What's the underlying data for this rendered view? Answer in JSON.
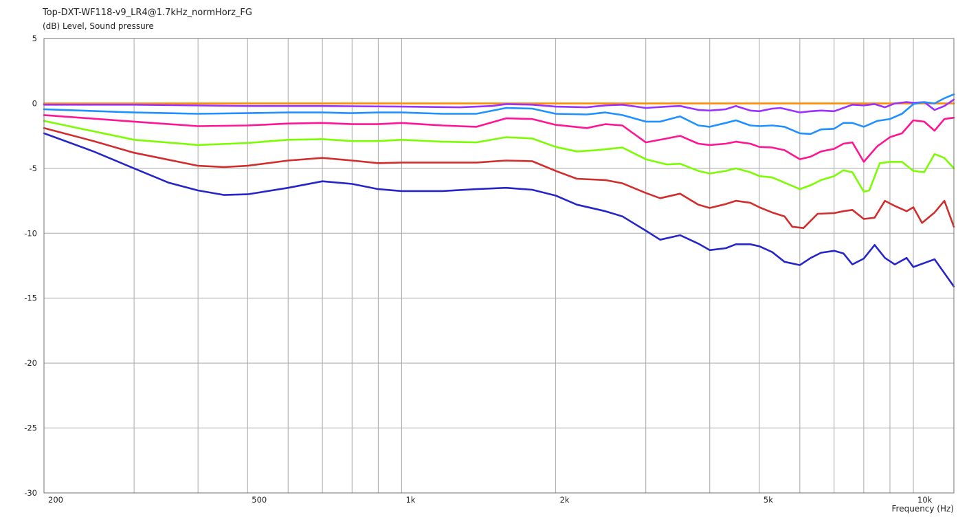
{
  "chart_data": {
    "type": "line",
    "title": "Top-DXT-WF118-v9_LR4@1.7kHz_normHorz_FG",
    "ylabel": "(dB)  Level, Sound pressure",
    "xlabel": "Frequency  (Hz)",
    "x_scale": "log",
    "xlim": [
      200,
      12000
    ],
    "ylim": [
      -30,
      5
    ],
    "grid": true,
    "x_ticks": [
      200,
      300,
      400,
      500,
      600,
      700,
      800,
      900,
      1000,
      2000,
      3000,
      4000,
      5000,
      6000,
      7000,
      8000,
      9000,
      10000
    ],
    "x_tick_labels": [
      {
        "value": 200,
        "label": "200"
      },
      {
        "value": 500,
        "label": "500"
      },
      {
        "value": 1000,
        "label": "1k"
      },
      {
        "value": 2000,
        "label": "2k"
      },
      {
        "value": 5000,
        "label": "5k"
      },
      {
        "value": 10000,
        "label": "10k"
      }
    ],
    "y_ticks": [
      5,
      0,
      -5,
      -10,
      -15,
      -20,
      -25,
      -30
    ],
    "series": [
      {
        "color": "#ff8c00",
        "points": [
          [
            200,
            0
          ],
          [
            12000,
            0
          ]
        ]
      },
      {
        "color": "#9b30ff",
        "points": [
          [
            200,
            -0.1
          ],
          [
            300,
            -0.1
          ],
          [
            500,
            -0.2
          ],
          [
            700,
            -0.2
          ],
          [
            1000,
            -0.25
          ],
          [
            1300,
            -0.3
          ],
          [
            1500,
            -0.2
          ],
          [
            1600,
            -0.05
          ],
          [
            1800,
            -0.1
          ],
          [
            2000,
            -0.25
          ],
          [
            2300,
            -0.3
          ],
          [
            2500,
            -0.15
          ],
          [
            2700,
            -0.1
          ],
          [
            3000,
            -0.35
          ],
          [
            3300,
            -0.25
          ],
          [
            3500,
            -0.2
          ],
          [
            3800,
            -0.5
          ],
          [
            4000,
            -0.55
          ],
          [
            4300,
            -0.45
          ],
          [
            4500,
            -0.2
          ],
          [
            4800,
            -0.55
          ],
          [
            5000,
            -0.6
          ],
          [
            5300,
            -0.4
          ],
          [
            5500,
            -0.35
          ],
          [
            6000,
            -0.7
          ],
          [
            6300,
            -0.6
          ],
          [
            6600,
            -0.55
          ],
          [
            7000,
            -0.6
          ],
          [
            7300,
            -0.35
          ],
          [
            7600,
            -0.1
          ],
          [
            8000,
            -0.15
          ],
          [
            8400,
            -0.05
          ],
          [
            8800,
            -0.3
          ],
          [
            9200,
            0.0
          ],
          [
            9700,
            0.1
          ],
          [
            10000,
            0.05
          ],
          [
            10500,
            0.1
          ],
          [
            11000,
            -0.5
          ],
          [
            11500,
            -0.2
          ],
          [
            12000,
            0.3
          ]
        ]
      },
      {
        "color": "#1e90ff",
        "points": [
          [
            200,
            -0.45
          ],
          [
            300,
            -0.7
          ],
          [
            400,
            -0.8
          ],
          [
            500,
            -0.75
          ],
          [
            600,
            -0.7
          ],
          [
            700,
            -0.7
          ],
          [
            800,
            -0.75
          ],
          [
            900,
            -0.7
          ],
          [
            1000,
            -0.7
          ],
          [
            1200,
            -0.8
          ],
          [
            1400,
            -0.8
          ],
          [
            1600,
            -0.35
          ],
          [
            1800,
            -0.4
          ],
          [
            2000,
            -0.8
          ],
          [
            2300,
            -0.85
          ],
          [
            2500,
            -0.7
          ],
          [
            2700,
            -0.9
          ],
          [
            3000,
            -1.4
          ],
          [
            3200,
            -1.4
          ],
          [
            3500,
            -1.0
          ],
          [
            3800,
            -1.7
          ],
          [
            4000,
            -1.8
          ],
          [
            4300,
            -1.5
          ],
          [
            4500,
            -1.3
          ],
          [
            4800,
            -1.7
          ],
          [
            5000,
            -1.75
          ],
          [
            5300,
            -1.7
          ],
          [
            5600,
            -1.8
          ],
          [
            6000,
            -2.3
          ],
          [
            6300,
            -2.35
          ],
          [
            6600,
            -2.0
          ],
          [
            7000,
            -1.95
          ],
          [
            7300,
            -1.5
          ],
          [
            7600,
            -1.5
          ],
          [
            8000,
            -1.8
          ],
          [
            8500,
            -1.35
          ],
          [
            9000,
            -1.2
          ],
          [
            9500,
            -0.8
          ],
          [
            10000,
            -0.05
          ],
          [
            10500,
            0.1
          ],
          [
            11000,
            0.0
          ],
          [
            11500,
            0.4
          ],
          [
            12000,
            0.7
          ]
        ]
      },
      {
        "color": "#ff1493",
        "points": [
          [
            200,
            -0.9
          ],
          [
            300,
            -1.4
          ],
          [
            400,
            -1.75
          ],
          [
            500,
            -1.7
          ],
          [
            600,
            -1.55
          ],
          [
            700,
            -1.5
          ],
          [
            800,
            -1.6
          ],
          [
            900,
            -1.6
          ],
          [
            1000,
            -1.5
          ],
          [
            1200,
            -1.7
          ],
          [
            1400,
            -1.8
          ],
          [
            1600,
            -1.15
          ],
          [
            1800,
            -1.2
          ],
          [
            2000,
            -1.65
          ],
          [
            2300,
            -1.9
          ],
          [
            2500,
            -1.6
          ],
          [
            2700,
            -1.7
          ],
          [
            3000,
            -3.0
          ],
          [
            3300,
            -2.7
          ],
          [
            3500,
            -2.5
          ],
          [
            3800,
            -3.1
          ],
          [
            4000,
            -3.2
          ],
          [
            4300,
            -3.1
          ],
          [
            4500,
            -2.95
          ],
          [
            4800,
            -3.1
          ],
          [
            5000,
            -3.35
          ],
          [
            5300,
            -3.4
          ],
          [
            5600,
            -3.6
          ],
          [
            6000,
            -4.3
          ],
          [
            6300,
            -4.1
          ],
          [
            6600,
            -3.7
          ],
          [
            7000,
            -3.5
          ],
          [
            7300,
            -3.1
          ],
          [
            7600,
            -3.0
          ],
          [
            8000,
            -4.5
          ],
          [
            8500,
            -3.3
          ],
          [
            9000,
            -2.6
          ],
          [
            9500,
            -2.3
          ],
          [
            10000,
            -1.3
          ],
          [
            10500,
            -1.4
          ],
          [
            11000,
            -2.1
          ],
          [
            11500,
            -1.2
          ],
          [
            12000,
            -1.1
          ]
        ]
      },
      {
        "color": "#7cfc00",
        "points": [
          [
            200,
            -1.35
          ],
          [
            300,
            -2.8
          ],
          [
            400,
            -3.2
          ],
          [
            500,
            -3.05
          ],
          [
            600,
            -2.8
          ],
          [
            700,
            -2.75
          ],
          [
            800,
            -2.9
          ],
          [
            900,
            -2.9
          ],
          [
            1000,
            -2.8
          ],
          [
            1200,
            -2.95
          ],
          [
            1400,
            -3.0
          ],
          [
            1600,
            -2.6
          ],
          [
            1800,
            -2.7
          ],
          [
            2000,
            -3.35
          ],
          [
            2200,
            -3.7
          ],
          [
            2400,
            -3.6
          ],
          [
            2700,
            -3.4
          ],
          [
            3000,
            -4.3
          ],
          [
            3300,
            -4.7
          ],
          [
            3500,
            -4.65
          ],
          [
            3800,
            -5.2
          ],
          [
            4000,
            -5.4
          ],
          [
            4300,
            -5.2
          ],
          [
            4500,
            -5.0
          ],
          [
            4800,
            -5.3
          ],
          [
            5000,
            -5.6
          ],
          [
            5300,
            -5.7
          ],
          [
            5600,
            -6.1
          ],
          [
            6000,
            -6.6
          ],
          [
            6300,
            -6.3
          ],
          [
            6600,
            -5.9
          ],
          [
            7000,
            -5.6
          ],
          [
            7300,
            -5.15
          ],
          [
            7600,
            -5.3
          ],
          [
            8000,
            -6.8
          ],
          [
            8200,
            -6.7
          ],
          [
            8600,
            -4.6
          ],
          [
            9000,
            -4.5
          ],
          [
            9500,
            -4.5
          ],
          [
            10000,
            -5.2
          ],
          [
            10500,
            -5.3
          ],
          [
            11000,
            -3.9
          ],
          [
            11500,
            -4.2
          ],
          [
            12000,
            -5.0
          ]
        ]
      },
      {
        "color": "#d22d2d",
        "points": [
          [
            200,
            -1.9
          ],
          [
            250,
            -2.9
          ],
          [
            300,
            -3.8
          ],
          [
            400,
            -4.8
          ],
          [
            450,
            -4.9
          ],
          [
            500,
            -4.8
          ],
          [
            600,
            -4.4
          ],
          [
            700,
            -4.2
          ],
          [
            800,
            -4.4
          ],
          [
            900,
            -4.6
          ],
          [
            1000,
            -4.55
          ],
          [
            1200,
            -4.55
          ],
          [
            1400,
            -4.55
          ],
          [
            1600,
            -4.4
          ],
          [
            1800,
            -4.45
          ],
          [
            2000,
            -5.2
          ],
          [
            2200,
            -5.8
          ],
          [
            2500,
            -5.9
          ],
          [
            2700,
            -6.15
          ],
          [
            3000,
            -6.9
          ],
          [
            3200,
            -7.3
          ],
          [
            3500,
            -6.95
          ],
          [
            3800,
            -7.8
          ],
          [
            4000,
            -8.05
          ],
          [
            4300,
            -7.75
          ],
          [
            4500,
            -7.5
          ],
          [
            4800,
            -7.65
          ],
          [
            5000,
            -8.0
          ],
          [
            5300,
            -8.4
          ],
          [
            5600,
            -8.7
          ],
          [
            5800,
            -9.5
          ],
          [
            6100,
            -9.6
          ],
          [
            6500,
            -8.5
          ],
          [
            7000,
            -8.45
          ],
          [
            7300,
            -8.3
          ],
          [
            7600,
            -8.2
          ],
          [
            8000,
            -8.9
          ],
          [
            8400,
            -8.8
          ],
          [
            8800,
            -7.5
          ],
          [
            9200,
            -7.9
          ],
          [
            9700,
            -8.3
          ],
          [
            10000,
            -8.0
          ],
          [
            10400,
            -9.2
          ],
          [
            11000,
            -8.4
          ],
          [
            11500,
            -7.5
          ],
          [
            12000,
            -9.5
          ]
        ]
      },
      {
        "color": "#2626c8",
        "points": [
          [
            200,
            -2.3
          ],
          [
            250,
            -3.7
          ],
          [
            300,
            -5.0
          ],
          [
            350,
            -6.1
          ],
          [
            400,
            -6.7
          ],
          [
            450,
            -7.05
          ],
          [
            500,
            -7.0
          ],
          [
            600,
            -6.5
          ],
          [
            700,
            -6.0
          ],
          [
            800,
            -6.2
          ],
          [
            900,
            -6.6
          ],
          [
            1000,
            -6.75
          ],
          [
            1200,
            -6.75
          ],
          [
            1400,
            -6.6
          ],
          [
            1600,
            -6.5
          ],
          [
            1800,
            -6.65
          ],
          [
            2000,
            -7.1
          ],
          [
            2200,
            -7.8
          ],
          [
            2500,
            -8.3
          ],
          [
            2700,
            -8.7
          ],
          [
            3000,
            -9.8
          ],
          [
            3200,
            -10.5
          ],
          [
            3500,
            -10.15
          ],
          [
            3800,
            -10.8
          ],
          [
            4000,
            -11.3
          ],
          [
            4300,
            -11.15
          ],
          [
            4500,
            -10.85
          ],
          [
            4800,
            -10.85
          ],
          [
            5000,
            -11.0
          ],
          [
            5300,
            -11.45
          ],
          [
            5600,
            -12.2
          ],
          [
            6000,
            -12.45
          ],
          [
            6300,
            -11.9
          ],
          [
            6600,
            -11.5
          ],
          [
            7000,
            -11.35
          ],
          [
            7300,
            -11.55
          ],
          [
            7600,
            -12.4
          ],
          [
            8000,
            -11.95
          ],
          [
            8400,
            -10.9
          ],
          [
            8800,
            -11.9
          ],
          [
            9200,
            -12.4
          ],
          [
            9700,
            -11.9
          ],
          [
            10000,
            -12.6
          ],
          [
            11000,
            -12.0
          ],
          [
            12000,
            -14.1
          ]
        ]
      }
    ]
  }
}
